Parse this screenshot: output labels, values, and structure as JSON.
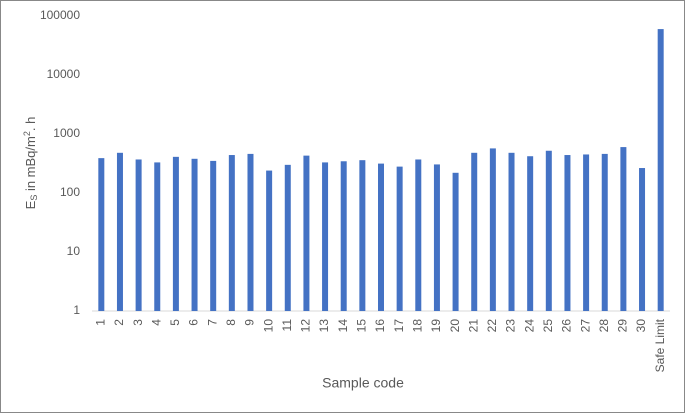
{
  "chart_data": {
    "type": "bar",
    "ylabel": [
      "E",
      "S",
      " in mBq/m",
      "2",
      ". h"
    ],
    "xlabel": "Sample code",
    "categories": [
      "1",
      "2",
      "3",
      "4",
      "5",
      "6",
      "7",
      "8",
      "9",
      "10",
      "11",
      "12",
      "13",
      "14",
      "15",
      "16",
      "17",
      "18",
      "19",
      "20",
      "21",
      "22",
      "23",
      "24",
      "25",
      "26",
      "27",
      "28",
      "29",
      "30",
      "Safe Limit"
    ],
    "values": [
      390,
      480,
      370,
      330,
      410,
      380,
      350,
      440,
      460,
      240,
      300,
      430,
      330,
      345,
      360,
      315,
      280,
      370,
      305,
      220,
      480,
      570,
      480,
      420,
      520,
      440,
      450,
      460,
      600,
      265,
      60000
    ],
    "color": "#4472c4",
    "log_scale": true,
    "ylim": [
      1,
      100000
    ],
    "yticks": [
      1,
      10,
      100,
      1000,
      10000,
      100000
    ],
    "grid": false
  }
}
